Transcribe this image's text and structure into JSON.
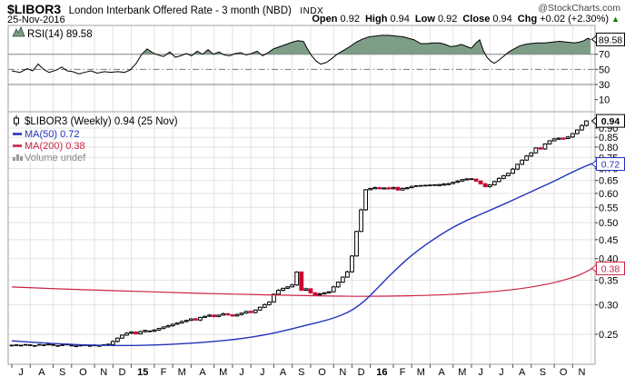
{
  "header": {
    "symbol": "$LIBOR3",
    "title": "London Interbank Offered Rate - 3 month (NBD)",
    "exchange": "INDX",
    "credit": "@StockCharts.com",
    "date": "25-Nov-2016",
    "quote": [
      {
        "label": "Open",
        "value": "0.92"
      },
      {
        "label": "High",
        "value": "0.94"
      },
      {
        "label": "Low",
        "value": "0.92"
      },
      {
        "label": "Close",
        "value": "0.94"
      },
      {
        "label": "Chg",
        "value": "+0.02 (+2.30%)"
      }
    ],
    "direction": "up",
    "up_arrow": "▲"
  },
  "colors": {
    "grid": "#e2e2e2",
    "panel_border": "#a0a0a0",
    "rsi_band": "#808080",
    "rsi_mid": "#777777",
    "rsi_fill": "#7e9d87",
    "rsi_line": "#000000",
    "candle_up_fill": "#ffffff",
    "candle_down_fill": "#cc0033",
    "candle_stroke": "#000000",
    "ma50": "#2233bb",
    "ma200": "#cc2244",
    "text": "#000000",
    "volume_text": "#888888",
    "up_green": "#007700"
  },
  "xaxis": {
    "months": [
      {
        "label": "J",
        "weeks": 4,
        "bold": false
      },
      {
        "label": "A",
        "weeks": 5,
        "bold": false
      },
      {
        "label": "S",
        "weeks": 4,
        "bold": false
      },
      {
        "label": "O",
        "weeks": 5,
        "bold": false
      },
      {
        "label": "N",
        "weeks": 4,
        "bold": false
      },
      {
        "label": "D",
        "weeks": 4,
        "bold": false
      },
      {
        "label": "15",
        "weeks": 5,
        "bold": true
      },
      {
        "label": "F",
        "weeks": 4,
        "bold": false
      },
      {
        "label": "M",
        "weeks": 4,
        "bold": false
      },
      {
        "label": "A",
        "weeks": 5,
        "bold": false
      },
      {
        "label": "M",
        "weeks": 4,
        "bold": false
      },
      {
        "label": "J",
        "weeks": 4,
        "bold": false
      },
      {
        "label": "J",
        "weeks": 5,
        "bold": false
      },
      {
        "label": "A",
        "weeks": 4,
        "bold": false
      },
      {
        "label": "S",
        "weeks": 4,
        "bold": false
      },
      {
        "label": "O",
        "weeks": 5,
        "bold": false
      },
      {
        "label": "N",
        "weeks": 4,
        "bold": false
      },
      {
        "label": "D",
        "weeks": 4,
        "bold": false
      },
      {
        "label": "16",
        "weeks": 5,
        "bold": true
      },
      {
        "label": "F",
        "weeks": 4,
        "bold": false
      },
      {
        "label": "M",
        "weeks": 4,
        "bold": false
      },
      {
        "label": "A",
        "weeks": 5,
        "bold": false
      },
      {
        "label": "M",
        "weeks": 4,
        "bold": false
      },
      {
        "label": "J",
        "weeks": 4,
        "bold": false
      },
      {
        "label": "J",
        "weeks": 5,
        "bold": false
      },
      {
        "label": "A",
        "weeks": 4,
        "bold": false
      },
      {
        "label": "S",
        "weeks": 5,
        "bold": false
      },
      {
        "label": "O",
        "weeks": 4,
        "bold": false
      },
      {
        "label": "N",
        "weeks": 4,
        "bold": false
      }
    ]
  },
  "chart_data": [
    {
      "type": "area",
      "panel": "rsi",
      "legend": "RSI(14) 89.58",
      "indicator": "RSI(14)",
      "current": 89.58,
      "ylim": [
        0,
        100
      ],
      "yticks": [
        70,
        50,
        30,
        10
      ],
      "overbought": 70,
      "midline": 50,
      "oversold": 30,
      "callout": "89.58",
      "points": [
        [
          13,
          48
        ],
        [
          22,
          46
        ],
        [
          30,
          51
        ],
        [
          36,
          48
        ],
        [
          42,
          57
        ],
        [
          48,
          50
        ],
        [
          54,
          46
        ],
        [
          62,
          49
        ],
        [
          68,
          53
        ],
        [
          74,
          48
        ],
        [
          80,
          47
        ],
        [
          87,
          44
        ],
        [
          93,
          46
        ],
        [
          100,
          48
        ],
        [
          107,
          45
        ],
        [
          115,
          47
        ],
        [
          122,
          46
        ],
        [
          130,
          47
        ],
        [
          137,
          46
        ],
        [
          143,
          49
        ],
        [
          150,
          58
        ],
        [
          156,
          70
        ],
        [
          162,
          77
        ],
        [
          168,
          72
        ],
        [
          174,
          69
        ],
        [
          180,
          67
        ],
        [
          187,
          73
        ],
        [
          193,
          66
        ],
        [
          199,
          68
        ],
        [
          205,
          71
        ],
        [
          211,
          68
        ],
        [
          217,
          74
        ],
        [
          223,
          70
        ],
        [
          229,
          76
        ],
        [
          235,
          70
        ],
        [
          241,
          73
        ],
        [
          247,
          69
        ],
        [
          253,
          68
        ],
        [
          259,
          71
        ],
        [
          265,
          72
        ],
        [
          271,
          69
        ],
        [
          277,
          71
        ],
        [
          283,
          74
        ],
        [
          289,
          68
        ],
        [
          295,
          72
        ],
        [
          301,
          77
        ],
        [
          308,
          80
        ],
        [
          315,
          83
        ],
        [
          322,
          86
        ],
        [
          328,
          88
        ],
        [
          334,
          87
        ],
        [
          338,
          78
        ],
        [
          343,
          68
        ],
        [
          348,
          61
        ],
        [
          353,
          57
        ],
        [
          359,
          59
        ],
        [
          365,
          64
        ],
        [
          371,
          70
        ],
        [
          378,
          75
        ],
        [
          385,
          80
        ],
        [
          392,
          86
        ],
        [
          399,
          90
        ],
        [
          406,
          93
        ],
        [
          413,
          94
        ],
        [
          420,
          95
        ],
        [
          428,
          95
        ],
        [
          436,
          94
        ],
        [
          444,
          93
        ],
        [
          450,
          91
        ],
        [
          456,
          89
        ],
        [
          463,
          84
        ],
        [
          470,
          84
        ],
        [
          477,
          85
        ],
        [
          484,
          85
        ],
        [
          490,
          83
        ],
        [
          496,
          80
        ],
        [
          502,
          81
        ],
        [
          508,
          83
        ],
        [
          514,
          80
        ],
        [
          519,
          78
        ],
        [
          524,
          85
        ],
        [
          528,
          89
        ],
        [
          532,
          75
        ],
        [
          536,
          66
        ],
        [
          540,
          61
        ],
        [
          544,
          58
        ],
        [
          549,
          62
        ],
        [
          554,
          67
        ],
        [
          560,
          73
        ],
        [
          566,
          77
        ],
        [
          572,
          81
        ],
        [
          578,
          83
        ],
        [
          584,
          84
        ],
        [
          592,
          85
        ],
        [
          600,
          85
        ],
        [
          608,
          86
        ],
        [
          616,
          87
        ],
        [
          624,
          86
        ],
        [
          632,
          85
        ],
        [
          638,
          86
        ],
        [
          643,
          88
        ],
        [
          647,
          91
        ],
        [
          650,
          89.58
        ]
      ]
    },
    {
      "type": "candlestick",
      "panel": "price",
      "legend": "$LIBOR3 (Weekly) 0.94 (25 Nov)",
      "timeframe": "Weekly",
      "last": 0.94,
      "last_date": "25 Nov",
      "scale": "log",
      "yticks": [
        0.9,
        0.85,
        0.8,
        0.75,
        0.7,
        0.65,
        0.6,
        0.55,
        0.5,
        0.45,
        0.4,
        0.35,
        0.3,
        0.25
      ],
      "first_open": 0.2336,
      "weekly_closes": [
        0.2331,
        0.2336,
        0.2331,
        0.2341,
        0.2336,
        0.2326,
        0.2341,
        0.2336,
        0.2346,
        0.2339,
        0.2326,
        0.2336,
        0.2346,
        0.2331,
        0.2321,
        0.2331,
        0.2336,
        0.2326,
        0.2334,
        0.2326,
        0.2339,
        0.2346,
        0.2391,
        0.2441,
        0.2486,
        0.2516,
        0.2536,
        0.2506,
        0.2541,
        0.2561,
        0.2546,
        0.2566,
        0.2591,
        0.2616,
        0.2636,
        0.2661,
        0.2681,
        0.2706,
        0.2726,
        0.2751,
        0.2731,
        0.2776,
        0.2796,
        0.2816,
        0.2791,
        0.2816,
        0.2841,
        0.2821,
        0.2801,
        0.2826,
        0.2851,
        0.2881,
        0.2861,
        0.2906,
        0.2956,
        0.3006,
        0.3056,
        0.3206,
        0.3286,
        0.3326,
        0.3356,
        0.3396,
        0.3681,
        0.3286,
        0.3316,
        0.3236,
        0.3196,
        0.3216,
        0.3236,
        0.3256,
        0.3356,
        0.3456,
        0.3566,
        0.3686,
        0.4066,
        0.4736,
        0.5416,
        0.6136,
        0.6186,
        0.6216,
        0.6186,
        0.6206,
        0.6176,
        0.6226,
        0.6126,
        0.6186,
        0.6216,
        0.6266,
        0.6276,
        0.6286,
        0.6296,
        0.6306,
        0.6316,
        0.6336,
        0.6356,
        0.6376,
        0.6426,
        0.6476,
        0.6536,
        0.6566,
        0.6556,
        0.6476,
        0.6366,
        0.6256,
        0.6326,
        0.6456,
        0.6586,
        0.6696,
        0.6796,
        0.6976,
        0.7186,
        0.7376,
        0.7566,
        0.7716,
        0.7956,
        0.7906,
        0.8156,
        0.8316,
        0.8416,
        0.8456,
        0.8436,
        0.8516,
        0.8696,
        0.8896,
        0.9146,
        0.9411
      ],
      "ma50": {
        "legend": "MA(50) 0.72",
        "value": 0.72,
        "points": [
          [
            13,
            0.24
          ],
          [
            60,
            0.236
          ],
          [
            110,
            0.2335
          ],
          [
            160,
            0.2335
          ],
          [
            210,
            0.2365
          ],
          [
            260,
            0.2425
          ],
          [
            300,
            0.2515
          ],
          [
            340,
            0.2655
          ],
          [
            365,
            0.2755
          ],
          [
            385,
            0.2885
          ],
          [
            400,
            0.306
          ],
          [
            415,
            0.332
          ],
          [
            430,
            0.362
          ],
          [
            450,
            0.402
          ],
          [
            470,
            0.438
          ],
          [
            490,
            0.472
          ],
          [
            510,
            0.502
          ],
          [
            530,
            0.528
          ],
          [
            550,
            0.5545
          ],
          [
            570,
            0.5835
          ],
          [
            590,
            0.6145
          ],
          [
            610,
            0.6475
          ],
          [
            630,
            0.6845
          ],
          [
            645,
            0.711
          ],
          [
            652,
            0.722
          ]
        ]
      },
      "ma200": {
        "legend": "MA(200) 0.38",
        "value": 0.38,
        "points": [
          [
            13,
            0.3355
          ],
          [
            80,
            0.3305
          ],
          [
            150,
            0.3265
          ],
          [
            220,
            0.3225
          ],
          [
            290,
            0.3195
          ],
          [
            350,
            0.3175
          ],
          [
            400,
            0.3165
          ],
          [
            450,
            0.3175
          ],
          [
            500,
            0.3205
          ],
          [
            540,
            0.3255
          ],
          [
            575,
            0.3325
          ],
          [
            605,
            0.3425
          ],
          [
            625,
            0.3525
          ],
          [
            640,
            0.3635
          ],
          [
            652,
            0.3765
          ]
        ]
      },
      "volume_legend": "Volume undef",
      "callouts": [
        {
          "text": "0.94",
          "value": 0.9411,
          "color": "#000000",
          "bold": true
        },
        {
          "text": "0.72",
          "value": 0.72,
          "color": "#2233bb",
          "bold": false
        },
        {
          "text": "0.38",
          "value": 0.3765,
          "color": "#cc2244",
          "bold": false
        }
      ]
    }
  ]
}
